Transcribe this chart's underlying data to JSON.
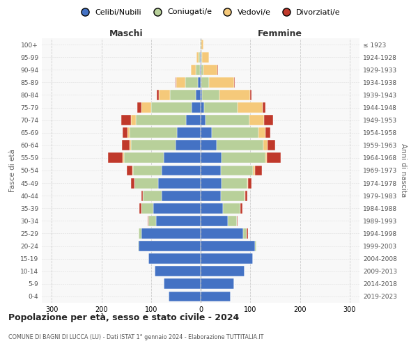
{
  "age_groups": [
    "0-4",
    "5-9",
    "10-14",
    "15-19",
    "20-24",
    "25-29",
    "30-34",
    "35-39",
    "40-44",
    "45-49",
    "50-54",
    "55-59",
    "60-64",
    "65-69",
    "70-74",
    "75-79",
    "80-84",
    "85-89",
    "90-94",
    "95-99",
    "100+"
  ],
  "birth_years": [
    "2019-2023",
    "2014-2018",
    "2009-2013",
    "2004-2008",
    "1999-2003",
    "1994-1998",
    "1989-1993",
    "1984-1988",
    "1979-1983",
    "1974-1978",
    "1969-1973",
    "1964-1968",
    "1959-1963",
    "1954-1958",
    "1949-1953",
    "1944-1948",
    "1939-1943",
    "1934-1938",
    "1929-1933",
    "1924-1928",
    "≤ 1923"
  ],
  "males": {
    "celibi": [
      65,
      75,
      92,
      105,
      125,
      120,
      90,
      95,
      78,
      85,
      78,
      75,
      50,
      48,
      30,
      18,
      10,
      5,
      2,
      1,
      0
    ],
    "coniugati": [
      0,
      0,
      0,
      0,
      2,
      5,
      15,
      25,
      38,
      48,
      58,
      80,
      90,
      95,
      100,
      82,
      52,
      26,
      8,
      3,
      1
    ],
    "vedovi": [
      0,
      0,
      0,
      0,
      0,
      0,
      0,
      0,
      0,
      0,
      1,
      2,
      3,
      4,
      10,
      20,
      22,
      18,
      9,
      4,
      1
    ],
    "divorziati": [
      0,
      0,
      0,
      0,
      0,
      0,
      2,
      3,
      4,
      7,
      12,
      30,
      15,
      10,
      20,
      8,
      4,
      2,
      1,
      0,
      0
    ]
  },
  "females": {
    "nubili": [
      60,
      68,
      88,
      105,
      110,
      85,
      55,
      45,
      40,
      42,
      40,
      42,
      32,
      22,
      10,
      7,
      3,
      2,
      1,
      1,
      0
    ],
    "coniugate": [
      0,
      0,
      0,
      0,
      2,
      8,
      18,
      35,
      48,
      52,
      65,
      88,
      95,
      95,
      88,
      68,
      35,
      15,
      5,
      2,
      1
    ],
    "vedove": [
      0,
      0,
      0,
      0,
      0,
      0,
      0,
      0,
      2,
      2,
      4,
      4,
      8,
      14,
      30,
      50,
      62,
      50,
      28,
      14,
      4
    ],
    "divorziate": [
      0,
      0,
      0,
      0,
      0,
      2,
      2,
      4,
      4,
      7,
      14,
      28,
      15,
      10,
      18,
      6,
      2,
      2,
      1,
      0,
      0
    ]
  },
  "colors": {
    "celibi_nubili": "#4472c4",
    "coniugati_e": "#b8d09a",
    "vedovi_e": "#f5c97a",
    "divorziati_e": "#c0392b"
  },
  "xlim": 320,
  "title": "Popolazione per età, sesso e stato civile - 2024",
  "subtitle": "COMUNE DI BAGNI DI LUCCA (LU) - Dati ISTAT 1° gennaio 2024 - Elaborazione TUTTITALIA.IT",
  "ylabel_left": "Fasce di età",
  "ylabel_right": "Anni di nascita",
  "xlabel_left": "Maschi",
  "xlabel_right": "Femmine",
  "legend_labels": [
    "Celibi/Nubili",
    "Coniugati/e",
    "Vedovi/e",
    "Divorziati/e"
  ],
  "background_color": "#ffffff",
  "plot_bg": "#f8f8f8",
  "grid_color": "#cccccc",
  "xticks": [
    -300,
    -200,
    -100,
    0,
    100,
    200,
    300
  ]
}
